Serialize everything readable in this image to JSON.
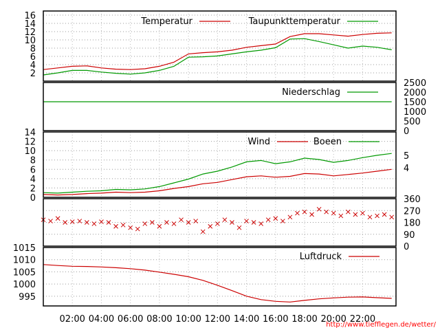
{
  "chart_data": [
    {
      "type": "line",
      "title": "",
      "ylim": [
        0,
        17
      ],
      "yticks": [
        2,
        4,
        6,
        8,
        10,
        12,
        14,
        16
      ],
      "grid": true,
      "legend": "top-right",
      "series": [
        {
          "name": "Temperatur",
          "color": "#cc0000",
          "x": [
            0,
            1,
            2,
            3,
            4,
            5,
            6,
            7,
            8,
            9,
            10,
            11,
            12,
            13,
            14,
            15,
            16,
            17,
            18,
            19,
            20,
            21,
            22,
            23,
            24
          ],
          "y": [
            2.8,
            3.2,
            3.6,
            3.7,
            3.2,
            2.9,
            2.8,
            3.0,
            3.6,
            4.6,
            6.6,
            6.9,
            7.1,
            7.5,
            8.2,
            8.6,
            9.0,
            10.8,
            11.5,
            11.5,
            11.2,
            10.9,
            11.3,
            11.6,
            11.7
          ]
        },
        {
          "name": "Taupunkttemperatur",
          "color": "#009900",
          "x": [
            0,
            1,
            2,
            3,
            4,
            5,
            6,
            7,
            8,
            9,
            10,
            11,
            12,
            13,
            14,
            15,
            16,
            17,
            18,
            19,
            20,
            21,
            22,
            23,
            24
          ],
          "y": [
            1.5,
            2.0,
            2.6,
            2.6,
            2.2,
            1.9,
            1.7,
            2.0,
            2.6,
            3.6,
            5.8,
            5.9,
            6.1,
            6.6,
            7.1,
            7.5,
            8.1,
            10.2,
            10.3,
            9.6,
            8.8,
            8.0,
            8.5,
            8.2,
            7.6
          ]
        }
      ]
    },
    {
      "type": "line",
      "title": "",
      "ylim": [
        0,
        2500
      ],
      "yticks": [
        0,
        500,
        1000,
        1500,
        2000,
        2500
      ],
      "grid": false,
      "legend": "top-right",
      "series": [
        {
          "name": "Niederschlag",
          "color": "#009900",
          "x": [
            0,
            24
          ],
          "y": [
            1500,
            1500
          ]
        }
      ]
    },
    {
      "type": "line",
      "title": "",
      "ylim": [
        0,
        14
      ],
      "yticks": [
        0,
        2,
        4,
        6,
        8,
        10,
        12,
        14
      ],
      "right_ticks": [
        "4",
        "5"
      ],
      "grid": true,
      "legend": "top-right",
      "series": [
        {
          "name": "Wind",
          "color": "#cc0000",
          "x": [
            0,
            1,
            2,
            3,
            4,
            5,
            6,
            7,
            8,
            9,
            10,
            11,
            12,
            13,
            14,
            15,
            16,
            17,
            18,
            19,
            20,
            21,
            22,
            23,
            24
          ],
          "y": [
            0.6,
            0.5,
            0.6,
            0.8,
            0.9,
            1.1,
            1.0,
            1.1,
            1.4,
            1.9,
            2.3,
            2.9,
            3.2,
            3.8,
            4.4,
            4.6,
            4.3,
            4.5,
            5.1,
            5.0,
            4.6,
            4.9,
            5.2,
            5.6,
            6.0
          ]
        },
        {
          "name": "Boeen",
          "color": "#009900",
          "x": [
            0,
            1,
            2,
            3,
            4,
            5,
            6,
            7,
            8,
            9,
            10,
            11,
            12,
            13,
            14,
            15,
            16,
            17,
            18,
            19,
            20,
            21,
            22,
            23,
            24
          ],
          "y": [
            1.0,
            0.9,
            1.1,
            1.3,
            1.4,
            1.7,
            1.6,
            1.8,
            2.3,
            3.1,
            3.9,
            5.0,
            5.6,
            6.5,
            7.6,
            7.9,
            7.2,
            7.6,
            8.4,
            8.1,
            7.5,
            7.9,
            8.5,
            9.0,
            9.4
          ]
        }
      ]
    },
    {
      "type": "scatter",
      "title": "",
      "ylim": [
        0,
        360
      ],
      "yticks": [
        0,
        90,
        180,
        270,
        360
      ],
      "grid": true,
      "series": [
        {
          "name": "",
          "color": "#cc0000",
          "x": [
            0,
            0.5,
            1,
            1.5,
            2,
            2.5,
            3,
            3.5,
            4,
            4.5,
            5,
            5.5,
            6,
            6.5,
            7,
            7.5,
            8,
            8.5,
            9,
            9.5,
            10,
            10.5,
            11,
            11.5,
            12,
            12.5,
            13,
            13.5,
            14,
            14.5,
            15,
            15.5,
            16,
            16.5,
            17,
            17.5,
            18,
            18.5,
            19,
            19.5,
            20,
            20.5,
            21,
            21.5,
            22,
            22.5,
            23,
            23.5,
            24
          ],
          "y": [
            200,
            190,
            210,
            180,
            185,
            190,
            180,
            170,
            185,
            180,
            150,
            160,
            140,
            130,
            170,
            180,
            150,
            180,
            170,
            200,
            180,
            190,
            110,
            150,
            170,
            200,
            180,
            140,
            190,
            180,
            170,
            200,
            210,
            190,
            220,
            250,
            260,
            240,
            280,
            260,
            250,
            230,
            260,
            240,
            250,
            220,
            230,
            240,
            220
          ]
        }
      ]
    },
    {
      "type": "line",
      "title": "",
      "ylim": [
        991,
        1015
      ],
      "yticks": [
        995,
        1000,
        1005,
        1010,
        1015
      ],
      "grid": true,
      "legend": "top-right",
      "series": [
        {
          "name": "Luftdruck",
          "color": "#cc0000",
          "x": [
            0,
            1,
            2,
            3,
            4,
            5,
            6,
            7,
            8,
            9,
            10,
            11,
            12,
            13,
            14,
            15,
            16,
            17,
            18,
            19,
            20,
            21,
            22,
            23,
            24
          ],
          "y": [
            1008.0,
            1007.6,
            1007.3,
            1007.2,
            1007.0,
            1006.7,
            1006.3,
            1005.7,
            1004.9,
            1004.0,
            1003.0,
            1001.5,
            999.5,
            997.3,
            995.0,
            993.6,
            992.9,
            992.6,
            993.3,
            993.9,
            994.3,
            994.6,
            994.7,
            994.4,
            994.1
          ]
        }
      ]
    }
  ],
  "x_axis": {
    "ticks": [
      "02:00",
      "04:00",
      "06:00",
      "08:00",
      "10:00",
      "12:00",
      "14:00",
      "16:00",
      "18:00",
      "20:00",
      "22:00"
    ],
    "tick_hours": [
      2,
      4,
      6,
      8,
      10,
      12,
      14,
      16,
      18,
      20,
      22
    ]
  },
  "source_url": "http://www.tiefflegen.de/wetter/"
}
